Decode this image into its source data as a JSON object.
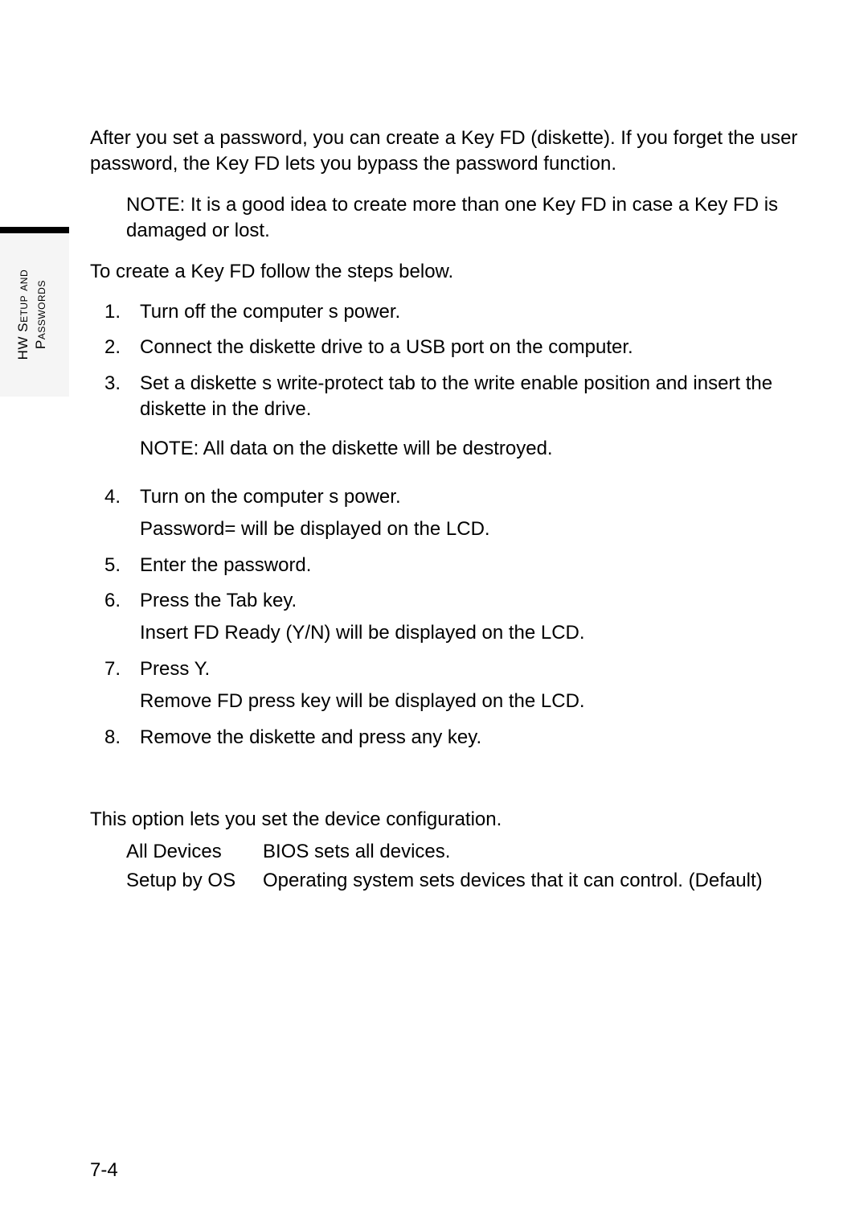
{
  "sidebar": {
    "line1": "HW Setup and",
    "line2": "Passwords"
  },
  "intro": "After you set a password, you can create a Key FD (diskette). If you forget the user password, the Key FD lets you bypass the password function.",
  "note1": "NOTE: It is a good idea to create more than one Key FD in case a Key FD is damaged or lost.",
  "lead": "To create a Key FD follow the steps below.",
  "steps": {
    "s1": "Turn off the computer s power.",
    "s2": "Connect the diskette drive to a USB port on the computer.",
    "s3": "Set a diskette s write-protect tab to the write enable position and insert the diskette in the drive.",
    "s3_note": "NOTE: All data on the diskette will be destroyed.",
    "s4_a": "Turn on the computer s power.",
    "s4_b": "Password=   will be displayed on the LCD.",
    "s5": "Enter the password.",
    "s6_a": "Press the Tab key.",
    "s6_b": "Insert FD Ready (Y/N)           will be displayed on the LCD.",
    "s7_a": "Press Y.",
    "s7_b": "Remove FD press key       will be displayed on the LCD.",
    "s8": "Remove the diskette and press any key."
  },
  "dc": {
    "intro": "This option lets you set the device configuration.",
    "r1_label": "All Devices",
    "r1_desc": "BIOS sets all devices.",
    "r2_label": "Setup by OS",
    "r2_desc": "Operating system sets devices that it can control. (Default)"
  },
  "page_number": "7-4"
}
